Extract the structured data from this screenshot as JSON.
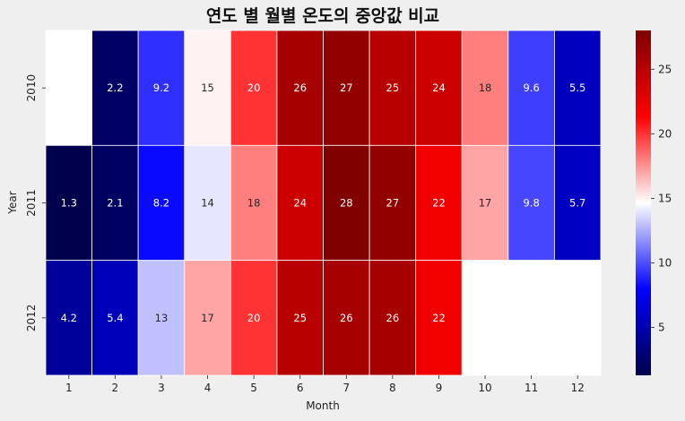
{
  "chart_data": {
    "type": "heatmap",
    "title": "연도 별 월별 온도의 중앙값 비교",
    "xlabel": "Month",
    "ylabel": "Year",
    "x_categories": [
      "1",
      "2",
      "3",
      "4",
      "5",
      "6",
      "7",
      "8",
      "9",
      "10",
      "11",
      "12"
    ],
    "y_categories": [
      "2010",
      "2011",
      "2012"
    ],
    "values": [
      [
        null,
        2.2,
        9.2,
        15,
        20,
        26,
        27,
        25,
        24,
        18,
        9.6,
        5.5
      ],
      [
        1.3,
        2.1,
        8.2,
        14,
        18,
        24,
        28,
        27,
        22,
        17,
        9.8,
        5.7
      ],
      [
        4.2,
        5.4,
        13,
        17,
        20,
        25,
        26,
        26,
        22,
        null,
        null,
        null
      ]
    ],
    "labels": [
      [
        "",
        "2.2",
        "9.2",
        "15",
        "20",
        "26",
        "27",
        "25",
        "24",
        "18",
        "9.6",
        "5.5"
      ],
      [
        "1.3",
        "2.1",
        "8.2",
        "14",
        "18",
        "24",
        "28",
        "27",
        "22",
        "17",
        "9.8",
        "5.7"
      ],
      [
        "4.2",
        "5.4",
        "13",
        "17",
        "20",
        "25",
        "26",
        "26",
        "22",
        "",
        "",
        ""
      ]
    ],
    "colormap": "seismic",
    "vmin": 1.3,
    "vmax": 28,
    "colorbar_ticks": [
      5,
      10,
      15,
      20,
      25
    ],
    "grid_line_color": "#ffffff",
    "missing_color": "#ffffff"
  }
}
